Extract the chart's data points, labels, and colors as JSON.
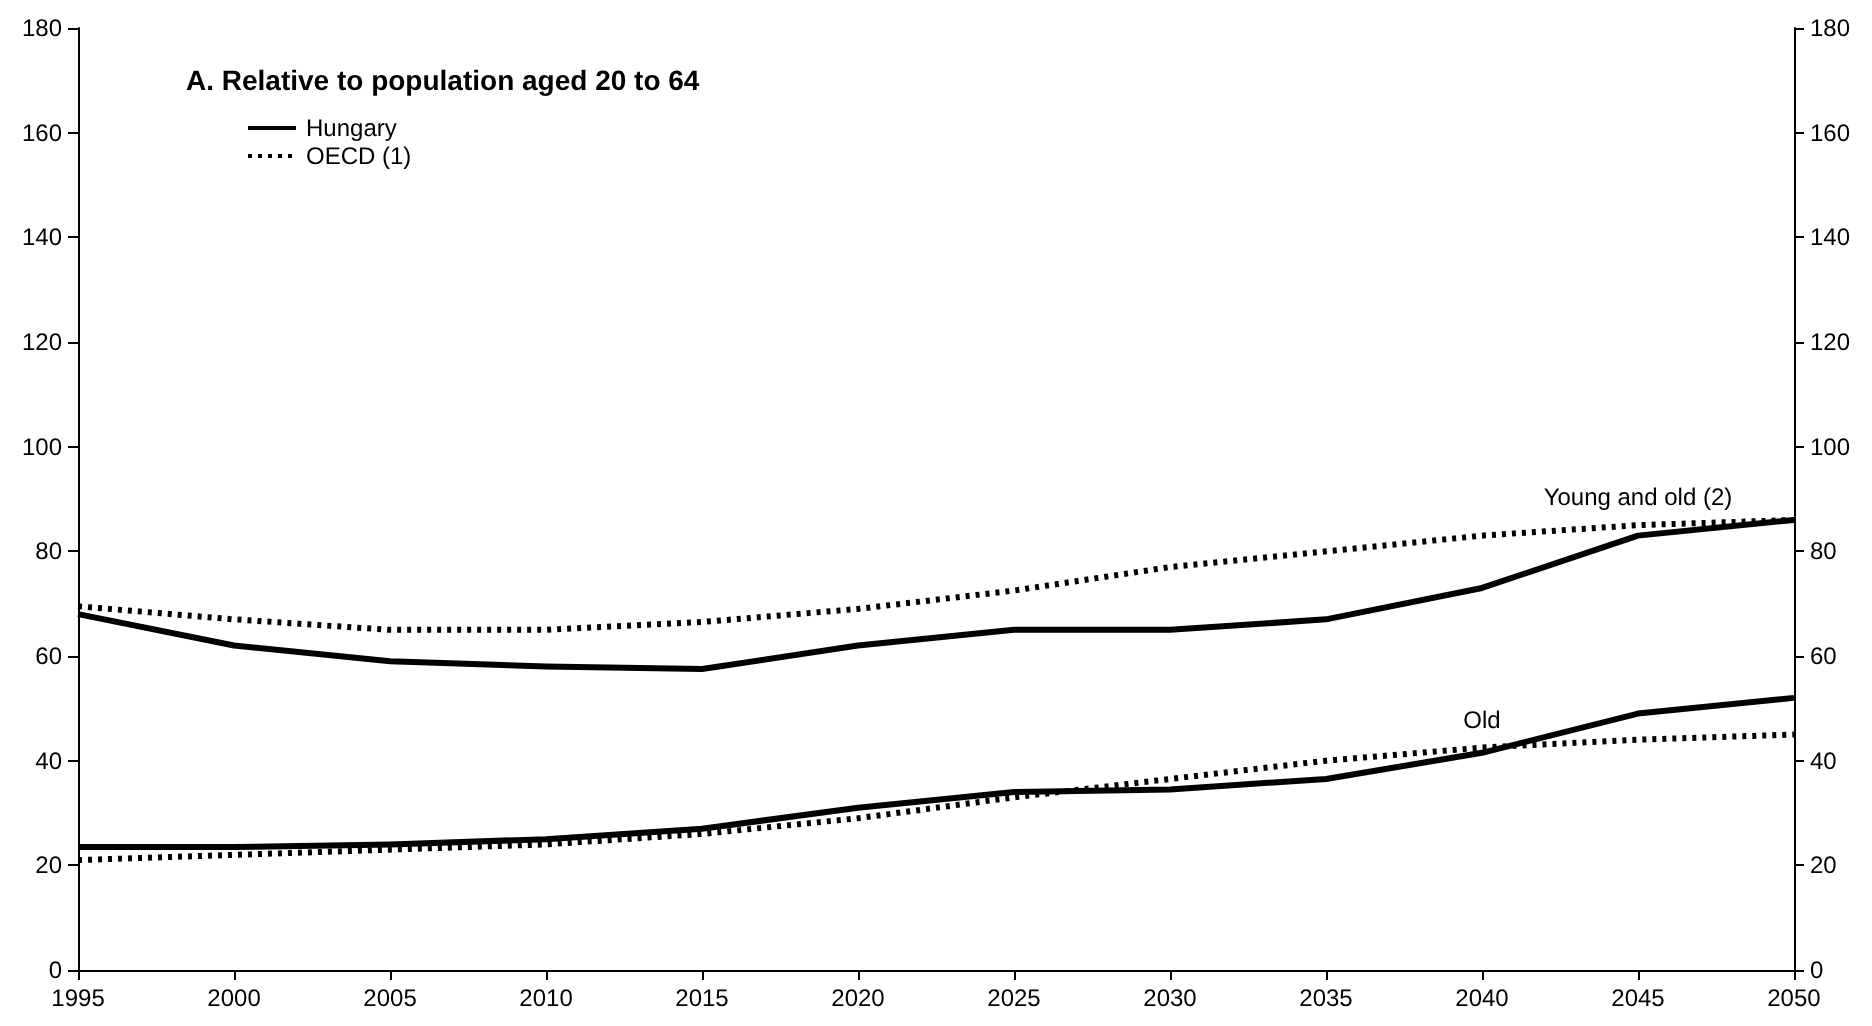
{
  "chart_data": {
    "type": "line",
    "title": "A. Relative to population aged 20 to 64",
    "x": [
      1995,
      2000,
      2005,
      2010,
      2015,
      2020,
      2025,
      2030,
      2035,
      2040,
      2045,
      2050
    ],
    "series": [
      {
        "name": "Hungary",
        "color": "#000000",
        "line_style": "solid",
        "values": [
          68,
          62,
          59,
          58,
          57.5,
          62,
          65,
          65,
          67,
          73,
          83,
          86
        ]
      },
      {
        "name": "OECD (1)",
        "color": "#000000",
        "line_style": "dotted",
        "values": [
          69.5,
          67,
          65,
          65,
          66.5,
          69,
          72.5,
          77,
          80,
          83,
          85,
          86
        ]
      },
      {
        "color": "#000000",
        "line_style": "solid",
        "values": [
          23.5,
          23.5,
          24,
          25,
          27,
          31,
          34,
          34.5,
          36.5,
          41.5,
          49,
          52
        ]
      },
      {
        "color": "#000000",
        "line_style": "dotted",
        "values": [
          21,
          22,
          23,
          24,
          26,
          29,
          33,
          36.5,
          40,
          42.5,
          44,
          45
        ]
      }
    ],
    "annotations": [
      {
        "text": "Young and old (2)",
        "x": 2045,
        "y": 85
      },
      {
        "text": "Old",
        "x": 2040,
        "y": 42.5
      }
    ],
    "xlim": [
      1995,
      2050
    ],
    "xticks": [
      1995,
      2000,
      2005,
      2010,
      2015,
      2020,
      2025,
      2030,
      2035,
      2040,
      2045,
      2050
    ],
    "ylim": [
      0,
      180
    ],
    "yticks": [
      0,
      20,
      40,
      60,
      80,
      100,
      120,
      140,
      160,
      180
    ],
    "y2lim": [
      0,
      180
    ],
    "y2ticks": [
      0,
      20,
      40,
      60,
      80,
      100,
      120,
      140,
      160,
      180
    ],
    "grid": false,
    "legend": "top left",
    "marker": "none"
  }
}
